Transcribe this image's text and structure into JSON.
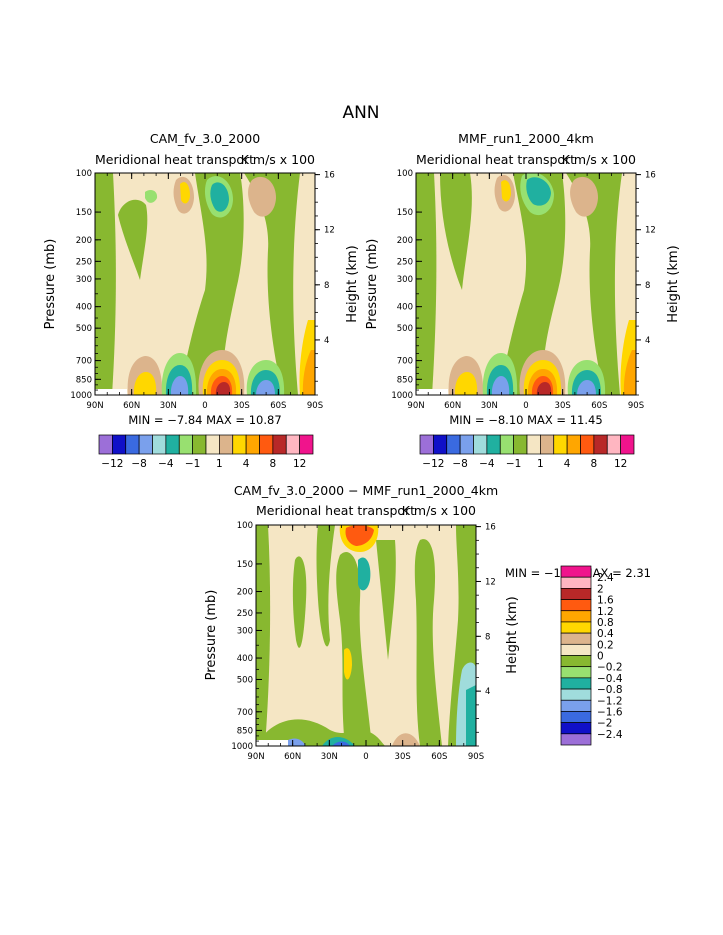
{
  "figure": {
    "title": "ANN",
    "contour_levels": [
      -12,
      -10,
      -8,
      -6,
      -4,
      -2,
      -1,
      0,
      1,
      2,
      4,
      6,
      8,
      10,
      12
    ],
    "colorbar_colors": [
      "#9c6fd8",
      "#1010c8",
      "#3a6ae0",
      "#7aa0ec",
      "#a0dcdc",
      "#20b0a0",
      "#98e070",
      "#88b830",
      "#f5e6c4",
      "#dcb48c",
      "#ffd700",
      "#ffa600",
      "#ff5a10",
      "#b82828",
      "#ffb6c1",
      "#f0148c"
    ],
    "colorbar_labels": [
      "-12",
      "-8",
      "-4",
      "-1",
      "1",
      "4",
      "8",
      "12"
    ],
    "diff_levels": [
      -2.4,
      -2,
      -1.6,
      -1.2,
      -0.8,
      -0.4,
      -0.2,
      0,
      0.2,
      0.4,
      0.8,
      1.2,
      1.6,
      2,
      2.4
    ],
    "diff_labels": [
      "2.4",
      "2",
      "1.6",
      "1.2",
      "0.8",
      "0.4",
      "0.2",
      "0",
      "−0.2",
      "−0.4",
      "−0.8",
      "−1.2",
      "−1.6",
      "−2",
      "−2.4"
    ],
    "left_axis_label": "Pressure (mb)",
    "right_axis_label": "Height (km)",
    "pressure_ticks": [
      "100",
      "150",
      "200",
      "250",
      "300",
      "400",
      "500",
      "700",
      "850",
      "1000"
    ],
    "height_ticks": [
      "16",
      "12",
      "8",
      "4"
    ],
    "lat_ticks": [
      "90N",
      "60N",
      "30N",
      "0",
      "30S",
      "60S",
      "90S"
    ]
  },
  "chart_data": [
    {
      "type": "heatmap",
      "panel": "cam",
      "title": "CAM_fv_3.0_2000",
      "subtitle": "Meridional heat transport",
      "units": "K m/s x 100",
      "xlabel": "",
      "ylabel": "Pressure (mb)",
      "y2label": "Height (km)",
      "x_range": [
        90,
        -90
      ],
      "y_range": [
        1000,
        100
      ],
      "y_scale": "log",
      "min_text": "MIN =  −7.84   MAX =   10.87",
      "min": -7.84,
      "max": 10.87,
      "features": [
        {
          "lat": 60,
          "p": 210,
          "value": 1,
          "desc": "weak positive cell"
        },
        {
          "lat": 22,
          "p": 170,
          "value": 4
        },
        {
          "lat": 12,
          "p": 500,
          "value": 1
        },
        {
          "lat": -12,
          "p": 190,
          "value": -4
        },
        {
          "lat": -12,
          "p": 960,
          "value": 10
        },
        {
          "lat": 40,
          "p": 960,
          "value": 4
        },
        {
          "lat": 20,
          "p": 960,
          "value": -8
        },
        {
          "lat": -48,
          "p": 960,
          "value": -4
        },
        {
          "lat": -50,
          "p": 200,
          "value": 1
        }
      ]
    },
    {
      "type": "heatmap",
      "panel": "mmf",
      "title": "MMF_run1_2000_4km",
      "subtitle": "Meridional heat transport",
      "units": "K m/s x 100",
      "xlabel": "",
      "ylabel": "Pressure (mb)",
      "y2label": "Height (km)",
      "x_range": [
        90,
        -90
      ],
      "y_range": [
        1000,
        100
      ],
      "y_scale": "log",
      "min_text": "MIN =  −8.10   MAX =   11.45",
      "min": -8.1,
      "max": 11.45,
      "features": [
        {
          "lat": 22,
          "p": 170,
          "value": 4
        },
        {
          "lat": -5,
          "p": 170,
          "value": -4
        },
        {
          "lat": -12,
          "p": 960,
          "value": 10
        },
        {
          "lat": 40,
          "p": 960,
          "value": 4
        },
        {
          "lat": 20,
          "p": 960,
          "value": -8
        },
        {
          "lat": -48,
          "p": 960,
          "value": -4
        },
        {
          "lat": -50,
          "p": 200,
          "value": 1
        }
      ]
    },
    {
      "type": "heatmap",
      "panel": "diff",
      "title": "CAM_fv_3.0_2000 − MMF_run1_2000_4km",
      "subtitle": "Meridional heat transport",
      "units": "K m/s x 100",
      "xlabel": "",
      "ylabel": "Pressure (mb)",
      "y2label": "Height (km)",
      "x_range": [
        90,
        -90
      ],
      "y_range": [
        1000,
        100
      ],
      "y_scale": "log",
      "min_text": "MIN =   −1.90   MAX =     2.31",
      "min": -1.9,
      "max": 2.31,
      "features": [
        {
          "lat": 0,
          "p": 120,
          "value": 1.6
        },
        {
          "lat": -5,
          "p": 230,
          "value": -0.4
        },
        {
          "lat": 10,
          "p": 690,
          "value": 0.4
        },
        {
          "lat": -80,
          "p": 800,
          "value": -0.8
        },
        {
          "lat": 35,
          "p": 960,
          "value": -0.4
        }
      ]
    }
  ]
}
